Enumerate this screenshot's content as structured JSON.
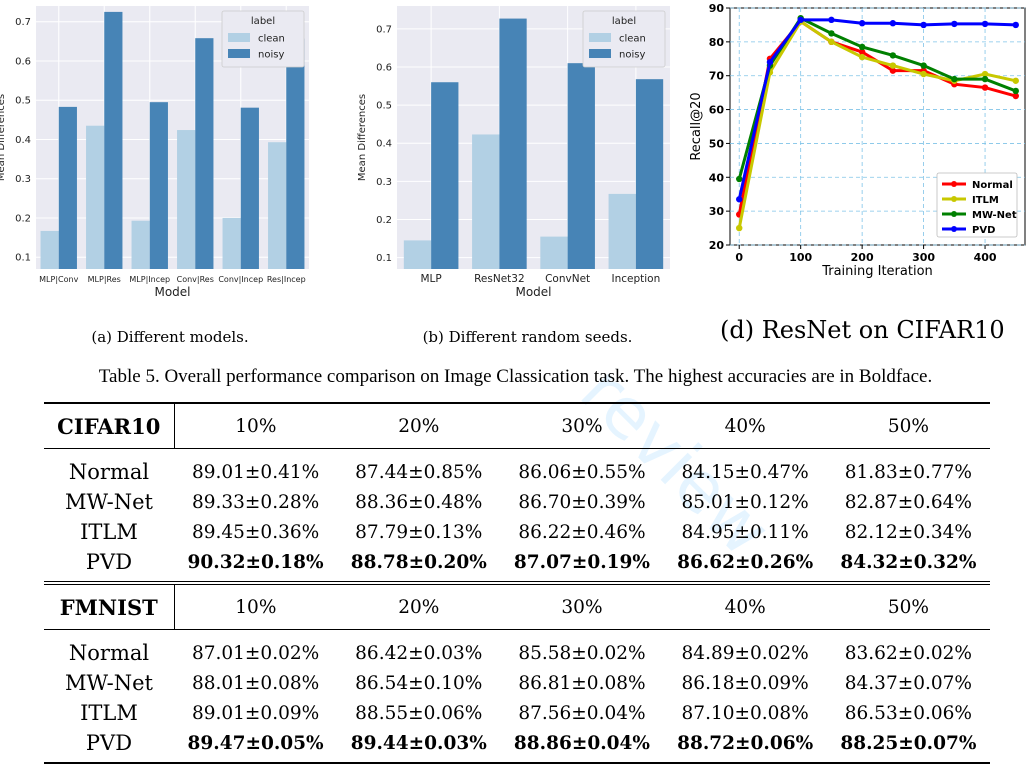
{
  "charts": [
    {
      "type": "bar",
      "categories": [
        "MLP|Conv",
        "MLP|Res",
        "MLP|Incep",
        "Conv|Res",
        "Conv|Incep",
        "Res|Incep"
      ],
      "series": [
        {
          "name": "clean",
          "values": [
            0.167,
            0.435,
            0.193,
            0.424,
            0.2,
            0.393
          ]
        },
        {
          "name": "noisy",
          "values": [
            0.483,
            0.725,
            0.495,
            0.658,
            0.481,
            0.657
          ]
        }
      ],
      "xlabel": "Model",
      "ylabel": "Mean Differences",
      "ylim": [
        0.07,
        0.74
      ],
      "yticks": [
        0.1,
        0.2,
        0.3,
        0.4,
        0.5,
        0.6,
        0.7
      ],
      "legend_title": "label",
      "legend_position": "top-right",
      "grid": true,
      "colors": {
        "clean": "#b2d0e4",
        "noisy": "#4784b6"
      }
    },
    {
      "type": "bar",
      "categories": [
        "MLP",
        "ResNet32",
        "ConvNet",
        "Inception"
      ],
      "series": [
        {
          "name": "clean",
          "values": [
            0.145,
            0.423,
            0.155,
            0.267
          ]
        },
        {
          "name": "noisy",
          "values": [
            0.56,
            0.727,
            0.61,
            0.568
          ]
        }
      ],
      "xlabel": "Model",
      "ylabel": "Mean Differences",
      "ylim": [
        0.07,
        0.76
      ],
      "yticks": [
        0.1,
        0.2,
        0.3,
        0.4,
        0.5,
        0.6,
        0.7
      ],
      "legend_title": "label",
      "legend_position": "top-right",
      "grid": true,
      "colors": {
        "clean": "#b2d0e4",
        "noisy": "#4784b6"
      }
    },
    {
      "type": "line",
      "x": [
        0,
        50,
        100,
        150,
        200,
        250,
        300,
        350,
        400,
        450
      ],
      "series": [
        {
          "name": "Normal",
          "color": "#ff0000",
          "values": [
            29,
            75,
            86,
            80,
            77,
            71.5,
            71.5,
            67.5,
            66.5,
            64
          ]
        },
        {
          "name": "ITLM",
          "color": "#c8c800",
          "values": [
            25,
            71,
            86,
            80,
            75.5,
            73,
            70.5,
            68.5,
            70.5,
            68.5
          ]
        },
        {
          "name": "MW-Net",
          "color": "#008000",
          "values": [
            39.5,
            73,
            87,
            82.5,
            78.5,
            76,
            73,
            69,
            69,
            65.5
          ]
        },
        {
          "name": "PVD",
          "color": "#0000ff",
          "values": [
            33.5,
            74,
            86.5,
            86.5,
            85.5,
            85.5,
            85,
            85.3,
            85.3,
            85
          ]
        }
      ],
      "xlabel": "Training Iteration",
      "ylabel": "Recall@20",
      "xlim": [
        -15,
        465
      ],
      "ylim": [
        20,
        90
      ],
      "xticks": [
        0,
        100,
        200,
        300,
        400
      ],
      "yticks": [
        20,
        30,
        40,
        50,
        60,
        70,
        80,
        90
      ],
      "legend_position": "lower-right",
      "grid": true
    }
  ],
  "captions": {
    "a": "(a)  Different models.",
    "b": "(b)  Different random seeds.",
    "d": "(d)  ResNet on CIFAR10"
  },
  "table_caption": "Table 5.  Overall performance comparison on Image Classication task. The highest accuracies are in Boldface.",
  "watermark": "review",
  "table": {
    "noise_levels": [
      "10%",
      "20%",
      "30%",
      "40%",
      "50%"
    ],
    "datasets": [
      {
        "name": "CIFAR10",
        "rows": [
          {
            "method": "Normal",
            "values": [
              "89.01±0.41%",
              "87.44±0.85%",
              "86.06±0.55%",
              "84.15±0.47%",
              "81.83±0.77%"
            ]
          },
          {
            "method": "MW-Net",
            "values": [
              "89.33±0.28%",
              "88.36±0.48%",
              "86.70±0.39%",
              "85.01±0.12%",
              "82.87±0.64%"
            ]
          },
          {
            "method": "ITLM",
            "values": [
              "89.45±0.36%",
              "87.79±0.13%",
              "86.22±0.46%",
              "84.95±0.11%",
              "82.12±0.34%"
            ]
          },
          {
            "method": "PVD",
            "values": [
              "90.32±0.18%",
              "88.78±0.20%",
              "87.07±0.19%",
              "86.62±0.26%",
              "84.32±0.32%"
            ]
          }
        ]
      },
      {
        "name": "FMNIST",
        "rows": [
          {
            "method": "Normal",
            "values": [
              "87.01±0.02%",
              "86.42±0.03%",
              "85.58±0.02%",
              "84.89±0.02%",
              "83.62±0.02%"
            ]
          },
          {
            "method": "MW-Net",
            "values": [
              "88.01±0.08%",
              "86.54±0.10%",
              "86.81±0.08%",
              "86.18±0.09%",
              "84.37±0.07%"
            ]
          },
          {
            "method": "ITLM",
            "values": [
              "89.01±0.09%",
              "88.55±0.06%",
              "87.56±0.04%",
              "87.10±0.08%",
              "86.53±0.06%"
            ]
          },
          {
            "method": "PVD",
            "values": [
              "89.47±0.05%",
              "89.44±0.03%",
              "88.86±0.04%",
              "88.72±0.06%",
              "88.25±0.07%"
            ]
          }
        ]
      }
    ]
  }
}
